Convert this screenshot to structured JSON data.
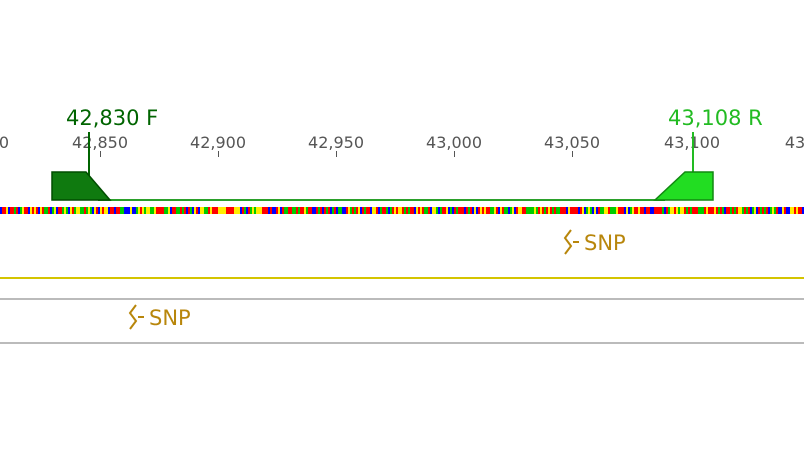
{
  "ruler": {
    "ticks": [
      {
        "label": "0"
      },
      {
        "label": "42,850"
      },
      {
        "label": "42,900"
      },
      {
        "label": "42,950"
      },
      {
        "label": "43,000"
      },
      {
        "label": "43,050"
      },
      {
        "label": "43,100"
      },
      {
        "label": "43"
      }
    ]
  },
  "primers": {
    "forward": {
      "label": "42,830 F",
      "color": "#006400"
    },
    "reverse": {
      "label": "43,108 R",
      "color": "#22bb22"
    }
  },
  "product_line_color": "#2aa02a",
  "snp_track": {
    "label_1": "SNP",
    "label_2": "SNP",
    "color": "#b8860b",
    "icon": "snp-icon"
  },
  "separator_colors": {
    "yellow": "#d4c400",
    "gray": "#bbbbbb"
  }
}
